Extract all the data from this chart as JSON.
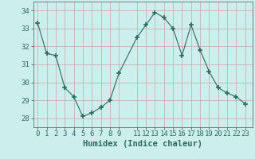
{
  "x": [
    0,
    1,
    2,
    3,
    4,
    5,
    6,
    7,
    8,
    9,
    11,
    12,
    13,
    14,
    15,
    16,
    17,
    18,
    19,
    20,
    21,
    22,
    23
  ],
  "y": [
    33.3,
    31.6,
    31.5,
    29.7,
    29.2,
    28.1,
    28.3,
    28.6,
    29.0,
    30.5,
    32.5,
    33.2,
    33.9,
    33.6,
    33.0,
    31.5,
    33.2,
    31.8,
    30.6,
    29.7,
    29.4,
    29.2,
    28.8
  ],
  "line_color": "#2e6b5e",
  "marker": "+",
  "marker_size": 5,
  "marker_lw": 1.2,
  "bg_color": "#cceeed",
  "grid_color": "#c8a8a8",
  "xlabel": "Humidex (Indice chaleur)",
  "xlabel_fontsize": 7.5,
  "tick_fontsize": 6.5,
  "ylim": [
    27.5,
    34.5
  ],
  "yticks": [
    28,
    29,
    30,
    31,
    32,
    33,
    34
  ],
  "xticks": [
    0,
    1,
    2,
    3,
    4,
    5,
    6,
    7,
    8,
    9,
    11,
    12,
    13,
    14,
    15,
    16,
    17,
    18,
    19,
    20,
    21,
    22,
    23
  ],
  "xlim": [
    -0.5,
    23.8
  ]
}
